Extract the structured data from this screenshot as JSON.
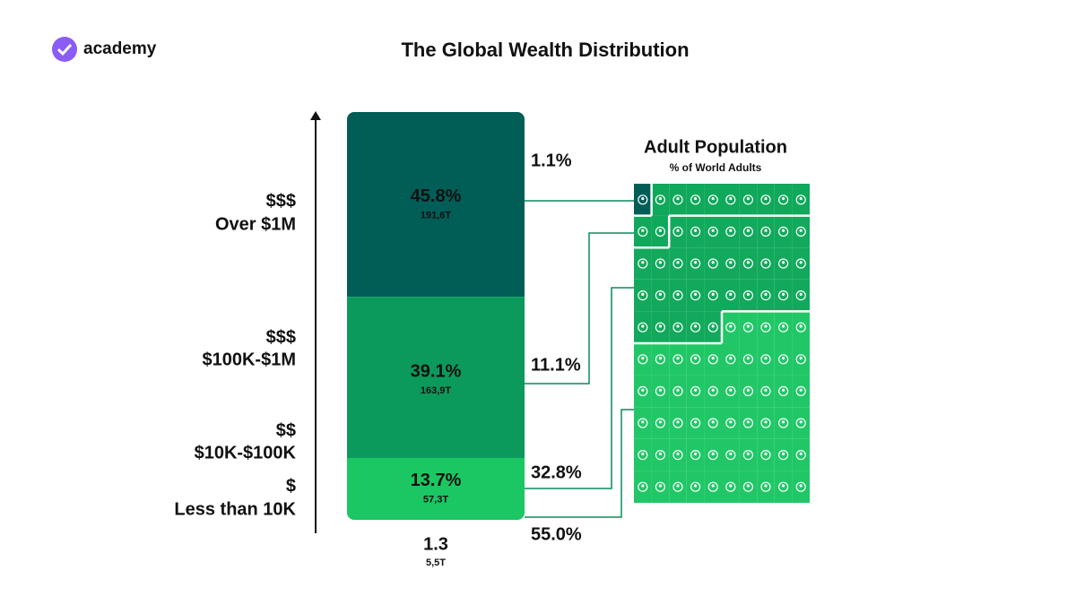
{
  "logo": "academy",
  "title": "The Global Wealth Distribution",
  "chart_data": {
    "type": "stacked-bar",
    "categories": [
      {
        "symbol": "$$$",
        "label": "Over $1M"
      },
      {
        "symbol": "$$$",
        "label": "$100K-$1M"
      },
      {
        "symbol": "$$",
        "label": "$10K-$100K"
      },
      {
        "symbol": "$",
        "label": "Less than 10K"
      }
    ],
    "wealth_share": {
      "values": [
        45.8,
        39.1,
        13.7,
        1.3
      ],
      "value_labels": [
        "45.8%",
        "39.1%",
        "13.7%",
        "1.3"
      ]
    },
    "wealth_totals": [
      "191,6T",
      "163,9T",
      "57,3T",
      "5,5T"
    ],
    "colors": [
      "#005e57",
      "#0b9a5c",
      "#1bc763",
      "#1bc763"
    ],
    "adult_population": {
      "title": "Adult Population",
      "subtitle": "% of World Adults",
      "values": [
        1.1,
        11.1,
        32.8,
        55.0
      ],
      "value_labels": [
        "1.1%",
        "11.1%",
        "32.8%",
        "55.0%"
      ],
      "colors": [
        "#005e57",
        "#10a85a",
        "#13a95c",
        "#21c766"
      ]
    }
  }
}
